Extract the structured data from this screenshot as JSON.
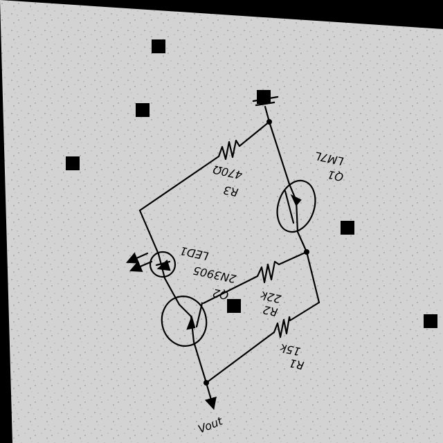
{
  "colors": {
    "paper": "#d3d3d3",
    "ink": "#000000",
    "background": "#000000"
  },
  "labels": {
    "r3_name": "R3",
    "r3_value": "470Ω",
    "q1_name": "Q1",
    "q1_part": "LM7L",
    "led_name": "LED1",
    "q2_name": "Q2",
    "q2_part": "2N3905",
    "r2_name": "R2",
    "r2_value": "22k",
    "r1_name": "R1",
    "r1_value": "15k",
    "vout": "Vout"
  }
}
